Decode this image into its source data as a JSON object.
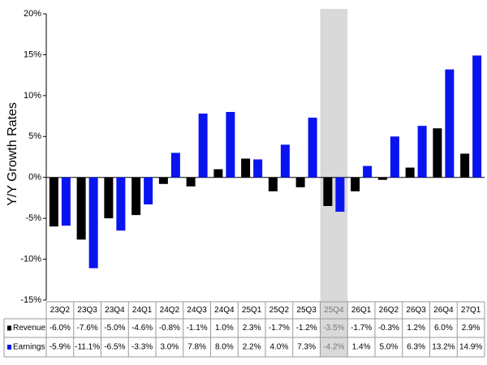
{
  "chart_data": {
    "type": "bar",
    "y_label": "Y/Y Growth Rates",
    "categories": [
      "23Q2",
      "23Q3",
      "23Q4",
      "24Q1",
      "24Q2",
      "24Q3",
      "24Q4",
      "25Q1",
      "25Q2",
      "25Q3",
      "25Q4",
      "26Q1",
      "26Q2",
      "26Q3",
      "26Q4",
      "27Q1"
    ],
    "series": [
      {
        "name": "Revenue",
        "color": "#000000",
        "values": [
          -6.0,
          -7.6,
          -5.0,
          -4.6,
          -0.8,
          -1.1,
          1.0,
          2.3,
          -1.7,
          -1.2,
          -3.5,
          -1.7,
          -0.3,
          1.2,
          6.0,
          2.9
        ],
        "value_labels": [
          "-6.0%",
          "-7.6%",
          "-5.0%",
          "-4.6%",
          "-0.8%",
          "-1.1%",
          "1.0%",
          "2.3%",
          "-1.7%",
          "-1.2%",
          "-3.5%",
          "-1.7%",
          "-0.3%",
          "1.2%",
          "6.0%",
          "2.9%"
        ]
      },
      {
        "name": "Earnings",
        "color": "#0a14f0",
        "values": [
          -5.9,
          -11.1,
          -6.5,
          -3.3,
          3.0,
          7.8,
          8.0,
          2.2,
          4.0,
          7.3,
          -4.2,
          1.4,
          5.0,
          6.3,
          13.2,
          14.9
        ],
        "value_labels": [
          "-5.9%",
          "-11.1%",
          "-6.5%",
          "-3.3%",
          "3.0%",
          "7.8%",
          "8.0%",
          "2.2%",
          "4.0%",
          "7.3%",
          "-4.2%",
          "1.4%",
          "5.0%",
          "6.3%",
          "13.2%",
          "14.9%"
        ]
      }
    ],
    "ylim": [
      -15,
      20
    ],
    "yticks": [
      {
        "value": -15,
        "label": "-15%"
      },
      {
        "value": -10,
        "label": "-10%"
      },
      {
        "value": -5,
        "label": "-5%"
      },
      {
        "value": 0,
        "label": "0%"
      },
      {
        "value": 5,
        "label": "5%"
      },
      {
        "value": 10,
        "label": "10%"
      },
      {
        "value": 15,
        "label": "15%"
      },
      {
        "value": 20,
        "label": "20%"
      }
    ],
    "highlight_index": 10,
    "highlight_color": "#d9d9d9"
  }
}
